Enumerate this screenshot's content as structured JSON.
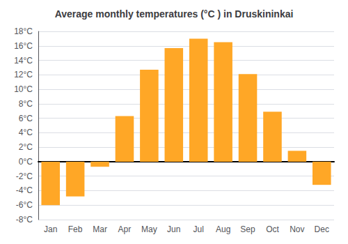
{
  "chart_data": {
    "type": "bar",
    "title": "Average monthly temperatures (°C ) in Druskininkai",
    "categories": [
      "Jan",
      "Feb",
      "Mar",
      "Apr",
      "May",
      "Jun",
      "Jul",
      "Aug",
      "Sep",
      "Oct",
      "Nov",
      "Dec"
    ],
    "values": [
      -6.0,
      -4.8,
      -0.7,
      6.3,
      12.7,
      15.7,
      17.0,
      16.5,
      12.1,
      6.9,
      1.5,
      -3.2
    ],
    "color": "#FFA726",
    "ylim": [
      -8,
      18
    ],
    "yticks": [
      {
        "value": -8,
        "label": "-8°C"
      },
      {
        "value": -6,
        "label": "-6°C"
      },
      {
        "value": -4,
        "label": "-4°C"
      },
      {
        "value": -2,
        "label": "-2°C"
      },
      {
        "value": 0,
        "label": "0°C"
      },
      {
        "value": 2,
        "label": "2°C"
      },
      {
        "value": 4,
        "label": "4°C"
      },
      {
        "value": 6,
        "label": "6°C"
      },
      {
        "value": 8,
        "label": "8°C"
      },
      {
        "value": 10,
        "label": "10°C"
      },
      {
        "value": 12,
        "label": "12°C"
      },
      {
        "value": 14,
        "label": "14°C"
      },
      {
        "value": 16,
        "label": "16°C"
      },
      {
        "value": 18,
        "label": "18°C"
      }
    ],
    "grid": true
  }
}
